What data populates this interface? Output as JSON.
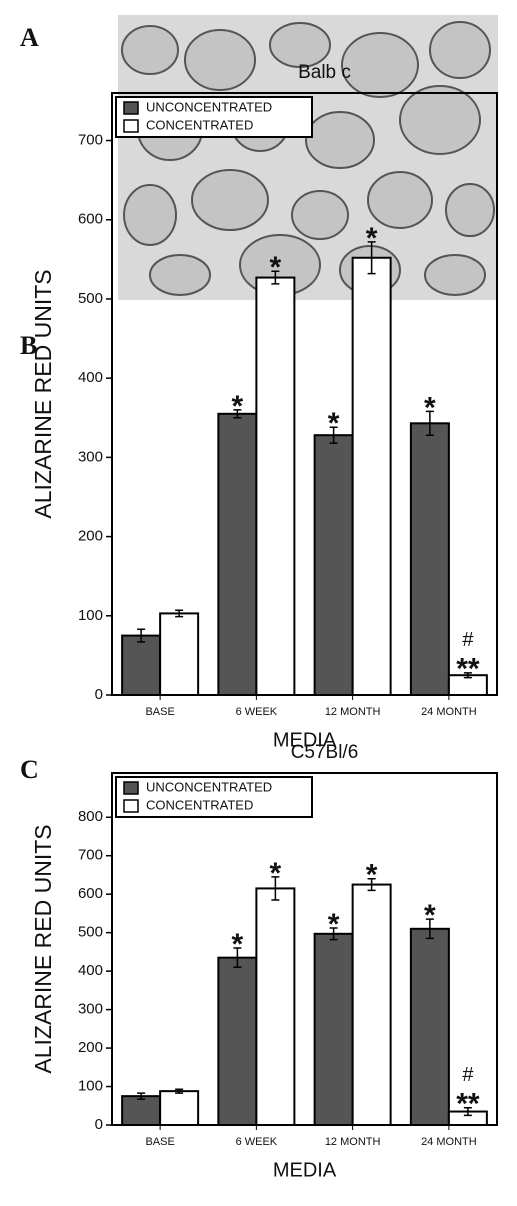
{
  "image_panel_label": "A",
  "chart_data": [
    {
      "type": "bar",
      "panel_label": "B",
      "title": "Balb c",
      "xlabel": "MEDIA",
      "ylabel": "ALIZARINE RED UNITS",
      "categories": [
        "BASE",
        "6 WEEK",
        "12 MONTH",
        "24 MONTH"
      ],
      "series": [
        {
          "name": "UNCONCENTRATED",
          "color": "#555555",
          "values": [
            75,
            355,
            328,
            343
          ],
          "errors": [
            8,
            5,
            10,
            15
          ],
          "annotations": [
            null,
            "*",
            "*",
            "*"
          ]
        },
        {
          "name": "CONCENTRATED",
          "color": "#ffffff",
          "values": [
            103,
            527,
            552,
            25
          ],
          "errors": [
            4,
            8,
            20,
            3
          ],
          "annotations": [
            null,
            "*",
            "*",
            "**"
          ],
          "annotations_top": [
            null,
            null,
            null,
            "#"
          ]
        }
      ],
      "ylim": [
        0,
        760
      ],
      "yticks": [
        0,
        100,
        200,
        300,
        400,
        500,
        600,
        700
      ],
      "legend": "upper left"
    },
    {
      "type": "bar",
      "panel_label": "C",
      "title": "C57Bl/6",
      "xlabel": "MEDIA",
      "ylabel": "ALIZARINE RED UNITS",
      "categories": [
        "BASE",
        "6 WEEK",
        "12 MONTH",
        "24 MONTH"
      ],
      "series": [
        {
          "name": "UNCONCENTRATED",
          "color": "#555555",
          "values": [
            75,
            435,
            497,
            510
          ],
          "errors": [
            8,
            25,
            15,
            25
          ],
          "annotations": [
            null,
            "*",
            "*",
            "*"
          ]
        },
        {
          "name": "CONCENTRATED",
          "color": "#ffffff",
          "values": [
            88,
            615,
            625,
            35
          ],
          "errors": [
            5,
            30,
            15,
            10
          ],
          "annotations": [
            null,
            "*",
            "*",
            "**"
          ],
          "annotations_top": [
            null,
            null,
            null,
            "#"
          ]
        }
      ],
      "ylim": [
        0,
        915
      ],
      "yticks": [
        0,
        100,
        200,
        300,
        400,
        500,
        600,
        700,
        800
      ],
      "legend": "upper left"
    }
  ]
}
